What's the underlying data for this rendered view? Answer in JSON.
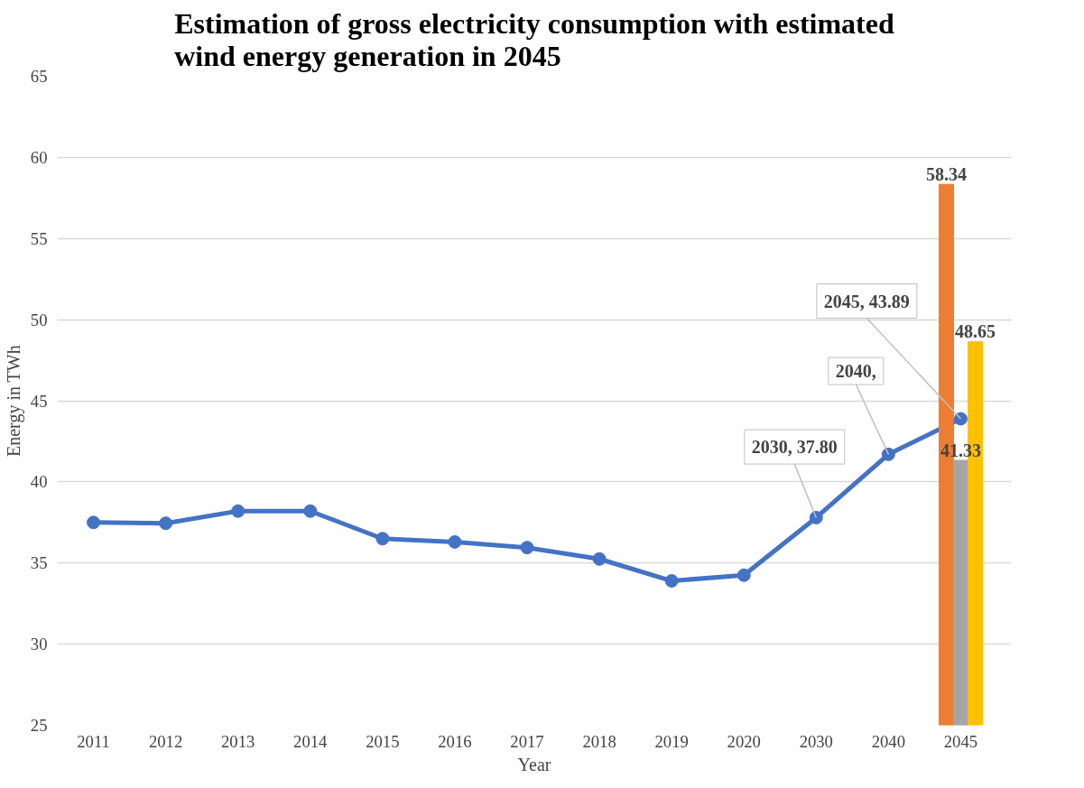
{
  "chart_data": {
    "type": "line",
    "title": "Estimation of gross electricity consumption with estimated\nwind energy generation in 2045",
    "xlabel": "Year",
    "ylabel": "Energy in TWh",
    "categories": [
      "2011",
      "2012",
      "2013",
      "2014",
      "2015",
      "2016",
      "2017",
      "2018",
      "2019",
      "2020",
      "2030",
      "2040",
      "2045"
    ],
    "series": [
      {
        "color": "#4472c4",
        "marker": "circle",
        "values": [
          37.5,
          37.45,
          38.2,
          38.2,
          36.5,
          36.3,
          35.95,
          35.25,
          33.9,
          34.25,
          37.8,
          41.7,
          43.89
        ]
      },
      {
        "type": "bar",
        "color": "#ed7d31",
        "values": [
          null,
          null,
          null,
          null,
          null,
          null,
          null,
          null,
          null,
          null,
          null,
          null,
          58.34
        ],
        "value_labels": [
          null,
          null,
          null,
          null,
          null,
          null,
          null,
          null,
          null,
          null,
          null,
          null,
          "58.34"
        ]
      },
      {
        "type": "bar",
        "color": "#a5a5a5",
        "values": [
          null,
          null,
          null,
          null,
          null,
          null,
          null,
          null,
          null,
          null,
          null,
          null,
          41.33
        ],
        "value_labels": [
          null,
          null,
          null,
          null,
          null,
          null,
          null,
          null,
          null,
          null,
          null,
          null,
          "41.33"
        ]
      },
      {
        "type": "bar",
        "color": "#ffc000",
        "values": [
          null,
          null,
          null,
          null,
          null,
          null,
          null,
          null,
          null,
          null,
          null,
          null,
          48.65
        ],
        "value_labels": [
          null,
          null,
          null,
          null,
          null,
          null,
          null,
          null,
          null,
          null,
          null,
          null,
          "48.65"
        ]
      }
    ],
    "annotations": [
      {
        "text": "2030, 37.80",
        "x": "2030",
        "y": 37.8
      },
      {
        "text": "2040,",
        "x": "2040",
        "y": 41.7
      },
      {
        "text": "2045, 43.89",
        "x": "2045",
        "y": 43.89
      }
    ],
    "ylim": [
      25,
      65
    ],
    "yticks": [
      25,
      30,
      35,
      40,
      45,
      50,
      55,
      60,
      65
    ],
    "grid": "y"
  }
}
